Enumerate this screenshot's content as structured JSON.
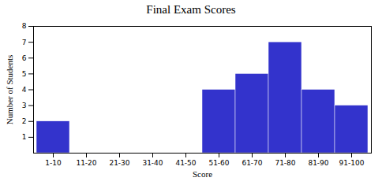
{
  "chart_data": {
    "type": "bar",
    "title": "Final Exam Scores",
    "xlabel": "Score",
    "ylabel": "Number of Students",
    "categories": [
      "1-10",
      "11-20",
      "21-30",
      "31-40",
      "41-50",
      "51-60",
      "61-70",
      "71-80",
      "81-90",
      "91-100"
    ],
    "values": [
      2,
      0,
      0,
      0,
      0,
      4,
      5,
      7,
      4,
      3
    ],
    "color": "#3333cc",
    "ylim": [
      0,
      8
    ],
    "yticks": [
      1,
      2,
      3,
      4,
      5,
      6,
      7,
      8
    ],
    "grid": false
  }
}
